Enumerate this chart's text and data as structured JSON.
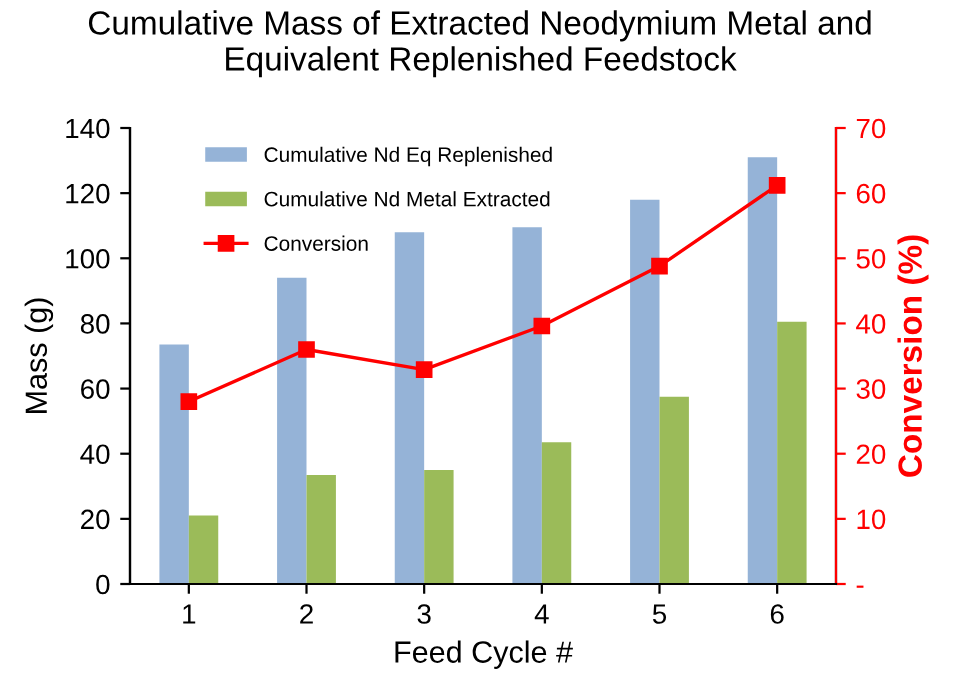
{
  "chart_data": {
    "type": "bar",
    "title": "Cumulative Mass of Extracted Neodymium Metal and\nEquivalent Replenished Feedstock",
    "xlabel": "Feed Cycle #",
    "ylabel": "Mass (g)",
    "y2label": "Conversion (%)",
    "categories": [
      "1",
      "2",
      "3",
      "4",
      "5",
      "6"
    ],
    "series": [
      {
        "name": "Cumulative Nd Eq Replenished",
        "color": "#95b3d7",
        "values": [
          73.5,
          94,
          108,
          109.5,
          118,
          131
        ]
      },
      {
        "name": "Cumulative Nd Metal Extracted",
        "color": "#9bbb59",
        "values": [
          21,
          33.5,
          35,
          43.5,
          57.5,
          80.5
        ]
      },
      {
        "name": "Conversion",
        "type": "line",
        "axis": "y2",
        "color": "#ff0000",
        "marker": "square",
        "values": [
          28.0,
          36.0,
          32.9,
          39.6,
          48.8,
          61.2
        ]
      }
    ],
    "ylim": [
      0,
      140
    ],
    "yticks": [
      0,
      20,
      40,
      60,
      80,
      100,
      120,
      140
    ],
    "y2lim": [
      0,
      70
    ],
    "y2ticks": [
      {
        "value": 0,
        "label": "-"
      },
      10,
      20,
      30,
      40,
      50,
      60,
      70
    ],
    "legend": "top left",
    "grid": false
  }
}
